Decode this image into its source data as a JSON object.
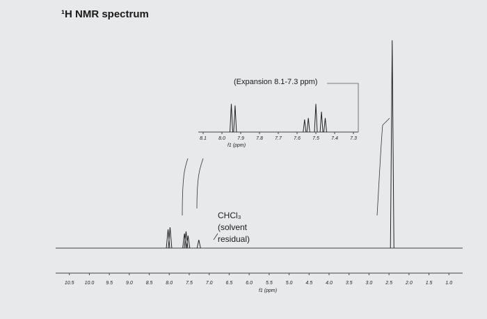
{
  "chart_data": [
    {
      "type": "spectrum",
      "title": "¹H NMR spectrum",
      "xlabel": "f1 (ppm)",
      "xlim": [
        11.0,
        0.5
      ],
      "xticks": [
        10.5,
        {
          "value": 10,
          "label": "10.0"
        },
        9.5,
        {
          "value": 9,
          "label": "9.0"
        },
        8.5,
        {
          "value": 8,
          "label": "8.0"
        },
        7.5,
        {
          "value": 7,
          "label": "7.0"
        },
        6.5,
        {
          "value": 6,
          "label": "6.0"
        },
        5.5,
        {
          "value": 5,
          "label": "5.0"
        },
        4.5,
        {
          "value": 4,
          "label": "4.0"
        },
        3.5,
        {
          "value": 3,
          "label": "3.0"
        },
        2.5,
        {
          "value": 2,
          "label": "2.0"
        },
        1.5,
        {
          "value": 1,
          "label": "1.0"
        }
      ],
      "ylim": [
        0,
        100
      ],
      "x": [
        8.03,
        7.98,
        7.62,
        7.58,
        7.53,
        7.26,
        2.42
      ],
      "values": [
        9,
        10,
        7,
        8,
        6,
        4,
        100
      ],
      "color": "#222222",
      "annotations": [
        "CHCl₃",
        "(solvent",
        "residual)"
      ]
    },
    {
      "type": "spectrum",
      "title": "(Expansion 8.1-7.3 ppm)",
      "xlabel": "f1 (ppm)",
      "xlim": [
        8.1,
        7.3
      ],
      "xticks": [
        8.1,
        {
          "value": 8,
          "label": "8.0"
        },
        7.9,
        7.8,
        7.7,
        7.6,
        7.5,
        7.4,
        7.3
      ],
      "ylim": [
        0,
        100
      ],
      "x": [
        7.95,
        7.93,
        7.56,
        7.54,
        7.5,
        7.47,
        7.45
      ],
      "values": [
        90,
        85,
        40,
        45,
        90,
        65,
        45
      ],
      "color": "#222222"
    }
  ]
}
